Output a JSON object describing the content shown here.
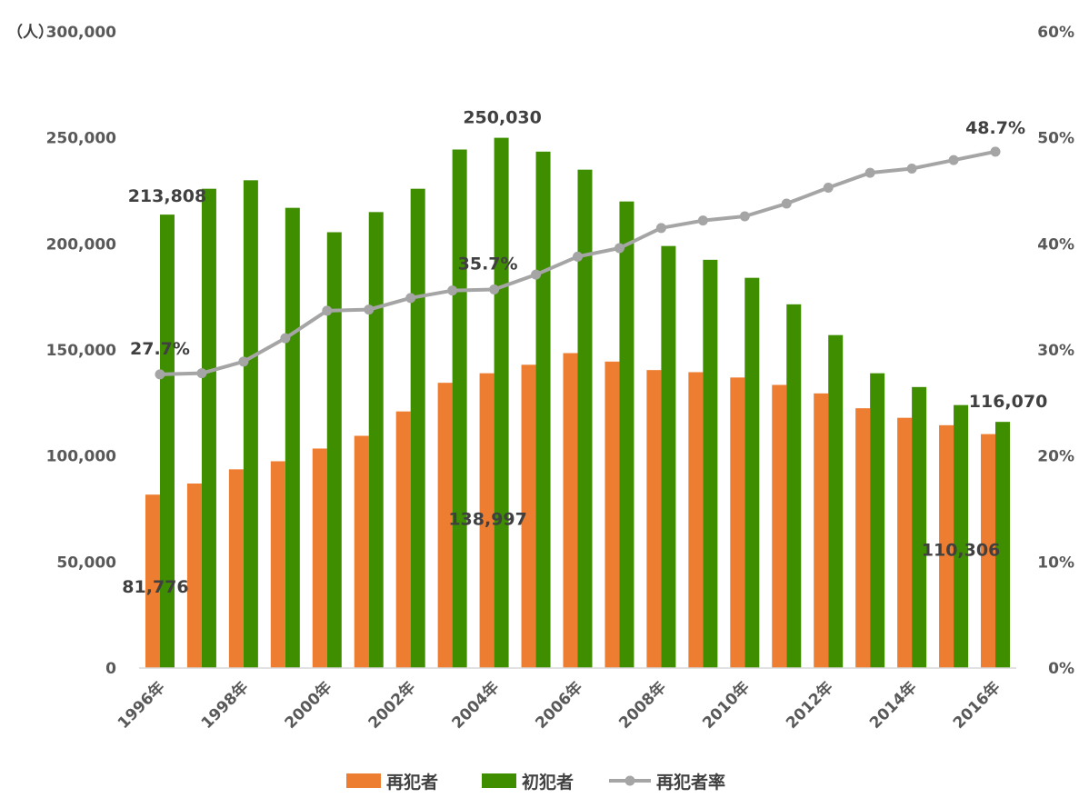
{
  "chart_data": {
    "type": "bar",
    "unit_label": "（人）",
    "categories": [
      "1996年",
      "1997年",
      "1998年",
      "1999年",
      "2000年",
      "2001年",
      "2002年",
      "2003年",
      "2004年",
      "2005年",
      "2006年",
      "2007年",
      "2008年",
      "2009年",
      "2010年",
      "2011年",
      "2012年",
      "2013年",
      "2014年",
      "2015年",
      "2016年"
    ],
    "x_tick_labels": [
      "1996年",
      "1998年",
      "2000年",
      "2002年",
      "2004年",
      "2006年",
      "2008年",
      "2010年",
      "2012年",
      "2014年",
      "2016年"
    ],
    "series": [
      {
        "name": "再犯者",
        "kind": "bar",
        "axis": "left",
        "color": "#ED7D31",
        "values": [
          81776,
          87000,
          93700,
          97500,
          103500,
          109500,
          121000,
          134500,
          138997,
          143000,
          148500,
          144500,
          140500,
          139500,
          137000,
          133500,
          129500,
          122500,
          118000,
          114500,
          110306
        ]
      },
      {
        "name": "初犯者",
        "kind": "bar",
        "axis": "left",
        "color": "#3E8E00",
        "values": [
          213808,
          226000,
          230000,
          217000,
          205500,
          215000,
          226000,
          244500,
          250030,
          243500,
          235000,
          220000,
          199000,
          192500,
          184000,
          171500,
          157000,
          139000,
          132500,
          124000,
          116070
        ]
      },
      {
        "name": "再犯者率",
        "kind": "line",
        "axis": "right",
        "color": "#A5A5A5",
        "values": [
          27.7,
          27.8,
          28.9,
          31.1,
          33.7,
          33.8,
          34.9,
          35.6,
          35.7,
          37.1,
          38.8,
          39.6,
          41.5,
          42.2,
          42.6,
          43.8,
          45.3,
          46.7,
          47.1,
          47.9,
          48.7
        ]
      }
    ],
    "y_left": {
      "ylim": [
        0,
        300000
      ],
      "ticks": [
        "0",
        "50,000",
        "100,000",
        "150,000",
        "200,000",
        "250,000",
        "300,000"
      ]
    },
    "y_right": {
      "ylim": [
        0,
        60
      ],
      "ticks": [
        "0%",
        "10%",
        "20%",
        "30%",
        "40%",
        "50%",
        "60%"
      ]
    },
    "data_labels": [
      {
        "series": 0,
        "index": 0,
        "text": "81,776"
      },
      {
        "series": 0,
        "index": 8,
        "text": "138,997"
      },
      {
        "series": 0,
        "index": 20,
        "text": "110,306"
      },
      {
        "series": 1,
        "index": 0,
        "text": "213,808"
      },
      {
        "series": 1,
        "index": 8,
        "text": "250,030"
      },
      {
        "series": 1,
        "index": 20,
        "text": "116,070"
      },
      {
        "series": 2,
        "index": 0,
        "text": "27.7%"
      },
      {
        "series": 2,
        "index": 8,
        "text": "35.7%"
      },
      {
        "series": 2,
        "index": 20,
        "text": "48.7%"
      }
    ],
    "legend": {
      "position": "bottom",
      "items": [
        "再犯者",
        "初犯者",
        "再犯者率"
      ]
    },
    "grid": false
  }
}
